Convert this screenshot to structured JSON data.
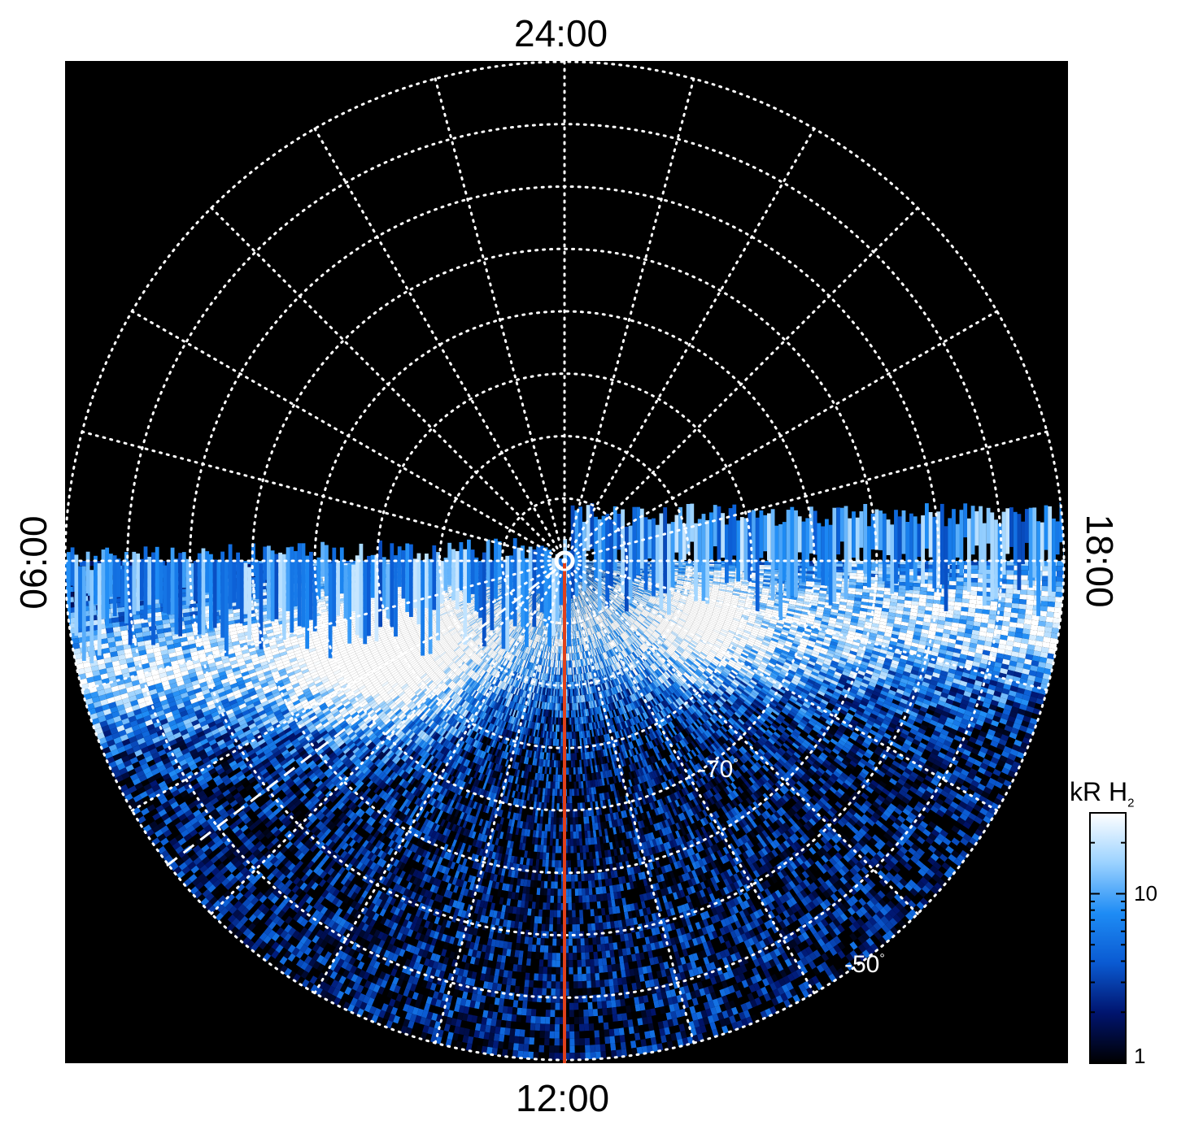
{
  "chart_data": {
    "type": "heatmap",
    "projection": "polar",
    "local_time_labels": {
      "top": "24:00",
      "bottom": "12:00",
      "left": "06:00",
      "right": "18:00"
    },
    "latitude_labels": [
      {
        "text": "-70",
        "degree_symbol": "°"
      },
      {
        "text": "-50",
        "degree_symbol": "°"
      }
    ],
    "colorbar": {
      "title_main": "kR H",
      "title_sub": "2",
      "scale": "log",
      "range": [
        1,
        30
      ],
      "ticks": [
        {
          "value": 1,
          "label": "1"
        },
        {
          "value": 10,
          "label": "10"
        }
      ],
      "colors": [
        "#000000",
        "#00146e",
        "#0a5ad2",
        "#1e8cf5",
        "#9bd2ff",
        "#ffffff"
      ]
    },
    "grid": {
      "latitude_circles": 8,
      "meridian_step_hours": 1,
      "style": "dotted",
      "color": "#ffffff"
    },
    "noon_meridian_color": "#e0401a",
    "dashed_line_color": "#ffffff",
    "background": "#000000"
  }
}
